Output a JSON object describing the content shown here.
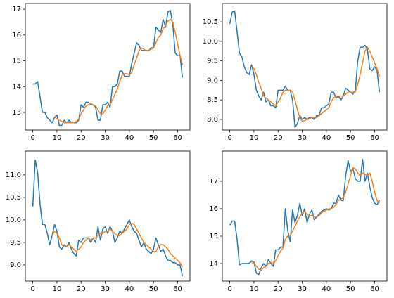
{
  "chart_data": [
    {
      "type": "line",
      "x": [
        0,
        1,
        2,
        3,
        4,
        5,
        6,
        7,
        8,
        9,
        10,
        11,
        12,
        13,
        14,
        15,
        16,
        17,
        18,
        19,
        20,
        21,
        22,
        23,
        24,
        25,
        26,
        27,
        28,
        29,
        30,
        31,
        32,
        33,
        34,
        35,
        36,
        37,
        38,
        39,
        40,
        41,
        42,
        43,
        44,
        45,
        46,
        47,
        48,
        49,
        50,
        51,
        52,
        53,
        54,
        55,
        56,
        57,
        58,
        59,
        60,
        61,
        62
      ],
      "series": [
        {
          "color": "#1f77b4",
          "values": [
            14.1,
            14.1,
            14.2,
            13.6,
            13.0,
            13.0,
            12.8,
            12.7,
            12.6,
            12.8,
            12.9,
            12.5,
            12.5,
            12.7,
            12.6,
            12.7,
            12.6,
            12.6,
            12.6,
            12.7,
            13.3,
            13.2,
            13.4,
            13.4,
            13.3,
            13.3,
            13.2,
            12.7,
            12.7,
            13.3,
            13.3,
            13.4,
            13.2,
            14.0,
            14.0,
            14.1,
            14.6,
            14.6,
            14.4,
            14.4,
            14.4,
            14.9,
            15.3,
            15.7,
            15.6,
            15.4,
            15.4,
            15.4,
            15.4,
            15.5,
            15.5,
            16.3,
            16.2,
            16.1,
            16.6,
            16.3,
            16.9,
            16.95,
            16.4,
            15.3,
            15.2,
            15.2,
            14.35
          ]
        },
        {
          "color": "#ff7f0e",
          "values": [
            null,
            null,
            null,
            null,
            null,
            null,
            null,
            null,
            null,
            12.85,
            12.75,
            12.7,
            12.65,
            12.6,
            12.6,
            12.6,
            12.6,
            12.6,
            12.65,
            12.75,
            12.95,
            13.1,
            13.25,
            13.3,
            13.35,
            13.3,
            13.25,
            13.1,
            12.95,
            12.95,
            13.1,
            13.25,
            13.3,
            13.5,
            13.7,
            13.9,
            14.2,
            14.45,
            14.5,
            14.5,
            14.45,
            14.55,
            14.85,
            15.1,
            15.4,
            15.5,
            15.45,
            15.4,
            15.4,
            15.45,
            15.5,
            15.7,
            15.9,
            16.0,
            16.25,
            16.35,
            16.55,
            16.6,
            16.5,
            16.1,
            15.65,
            15.2,
            14.85
          ]
        }
      ],
      "xlim": [
        -3.1,
        65.1
      ],
      "xticks": [
        0,
        10,
        20,
        30,
        40,
        50,
        60
      ],
      "ylim": [
        12.32,
        17.22
      ],
      "yticks": [
        13,
        14,
        15,
        16,
        17
      ]
    },
    {
      "type": "line",
      "x": [
        0,
        1,
        2,
        3,
        4,
        5,
        6,
        7,
        8,
        9,
        10,
        11,
        12,
        13,
        14,
        15,
        16,
        17,
        18,
        19,
        20,
        21,
        22,
        23,
        24,
        25,
        26,
        27,
        28,
        29,
        30,
        31,
        32,
        33,
        34,
        35,
        36,
        37,
        38,
        39,
        40,
        41,
        42,
        43,
        44,
        45,
        46,
        47,
        48,
        49,
        50,
        51,
        52,
        53,
        54,
        55,
        56,
        57,
        58,
        59,
        60,
        61,
        62
      ],
      "series": [
        {
          "color": "#1f77b4",
          "values": [
            10.45,
            10.75,
            10.78,
            10.25,
            9.7,
            9.6,
            9.35,
            9.2,
            9.15,
            9.4,
            9.15,
            8.75,
            8.6,
            8.5,
            8.7,
            8.45,
            8.5,
            8.35,
            8.35,
            8.3,
            8.75,
            8.75,
            8.75,
            8.85,
            8.75,
            8.75,
            8.5,
            7.8,
            7.9,
            8.1,
            8.0,
            8.05,
            8.0,
            8.05,
            8.05,
            8.0,
            8.1,
            8.1,
            8.3,
            8.3,
            8.35,
            8.4,
            8.7,
            8.7,
            8.55,
            8.6,
            8.5,
            8.6,
            8.8,
            8.75,
            8.7,
            8.65,
            8.75,
            9.5,
            9.85,
            9.85,
            9.9,
            9.8,
            9.3,
            9.25,
            9.35,
            9.25,
            8.7
          ]
        },
        {
          "color": "#ff7f0e",
          "values": [
            null,
            null,
            null,
            null,
            null,
            null,
            null,
            null,
            null,
            9.35,
            9.3,
            9.15,
            8.95,
            8.8,
            8.6,
            8.55,
            8.5,
            8.45,
            8.4,
            8.35,
            8.45,
            8.55,
            8.7,
            8.75,
            8.75,
            8.75,
            8.7,
            8.5,
            8.25,
            8.05,
            7.95,
            7.97,
            8.0,
            8.02,
            8.05,
            8.05,
            8.05,
            8.1,
            8.15,
            8.2,
            8.25,
            8.3,
            8.45,
            8.55,
            8.6,
            8.6,
            8.6,
            8.6,
            8.65,
            8.7,
            8.7,
            8.7,
            8.7,
            8.9,
            9.15,
            9.45,
            9.75,
            9.85,
            9.75,
            9.6,
            9.45,
            9.3,
            9.1
          ]
        }
      ],
      "xlim": [
        -3.1,
        65.1
      ],
      "xticks": [
        0,
        10,
        20,
        30,
        40,
        50,
        60
      ],
      "ylim": [
        7.73,
        10.97
      ],
      "yticks": [
        {
          "value": 8.0,
          "label": "8.0"
        },
        {
          "value": 8.5,
          "label": "8.5"
        },
        {
          "value": 9.0,
          "label": "9.0"
        },
        {
          "value": 9.5,
          "label": "9.5"
        },
        {
          "value": 10.0,
          "label": "10.0"
        },
        {
          "value": 10.5,
          "label": "10.5"
        }
      ]
    },
    {
      "type": "line",
      "x": [
        0,
        1,
        2,
        3,
        4,
        5,
        6,
        7,
        8,
        9,
        10,
        11,
        12,
        13,
        14,
        15,
        16,
        17,
        18,
        19,
        20,
        21,
        22,
        23,
        24,
        25,
        26,
        27,
        28,
        29,
        30,
        31,
        32,
        33,
        34,
        35,
        36,
        37,
        38,
        39,
        40,
        41,
        42,
        43,
        44,
        45,
        46,
        47,
        48,
        49,
        50,
        51,
        52,
        53,
        54,
        55,
        56,
        57,
        58,
        59,
        60,
        61,
        62
      ],
      "series": [
        {
          "color": "#1f77b4",
          "values": [
            10.3,
            11.33,
            11.05,
            10.35,
            9.9,
            9.9,
            9.7,
            9.45,
            9.65,
            9.9,
            9.75,
            9.4,
            9.35,
            9.45,
            9.4,
            9.5,
            9.35,
            9.25,
            9.2,
            9.55,
            9.5,
            9.6,
            9.6,
            9.6,
            9.5,
            9.6,
            9.5,
            9.85,
            9.55,
            9.8,
            9.85,
            9.7,
            9.85,
            9.75,
            9.5,
            9.6,
            9.75,
            9.7,
            9.8,
            9.9,
            10.0,
            9.85,
            9.75,
            9.7,
            9.55,
            9.4,
            9.5,
            9.35,
            9.3,
            9.25,
            9.35,
            9.6,
            9.45,
            9.3,
            9.35,
            9.2,
            9.1,
            9.1,
            9.05,
            9.05,
            9.0,
            9.0,
            8.75
          ]
        },
        {
          "color": "#ff7f0e",
          "values": [
            null,
            null,
            null,
            null,
            null,
            null,
            null,
            null,
            9.65,
            9.75,
            9.7,
            9.6,
            9.45,
            9.4,
            9.4,
            9.45,
            9.4,
            9.35,
            9.3,
            9.35,
            9.4,
            9.5,
            9.55,
            9.6,
            9.55,
            9.6,
            9.6,
            9.65,
            9.7,
            9.7,
            9.75,
            9.75,
            9.8,
            9.75,
            9.7,
            9.65,
            9.65,
            9.7,
            9.75,
            9.8,
            9.9,
            9.92,
            9.9,
            9.8,
            9.7,
            9.6,
            9.5,
            9.45,
            9.4,
            9.35,
            9.3,
            9.3,
            9.4,
            9.45,
            9.45,
            9.4,
            9.35,
            9.25,
            9.2,
            9.15,
            9.1,
            9.05,
            8.95
          ]
        }
      ],
      "xlim": [
        -3.1,
        65.1
      ],
      "xticks": [
        0,
        10,
        20,
        30,
        40,
        50,
        60
      ],
      "ylim": [
        8.64,
        11.53
      ],
      "yticks": [
        {
          "value": 9.0,
          "label": "9.0"
        },
        {
          "value": 9.5,
          "label": "9.5"
        },
        {
          "value": 10.0,
          "label": "10.0"
        },
        {
          "value": 10.5,
          "label": "10.5"
        },
        {
          "value": 11.0,
          "label": "11.0"
        }
      ]
    },
    {
      "type": "line",
      "x": [
        0,
        1,
        2,
        3,
        4,
        5,
        6,
        7,
        8,
        9,
        10,
        11,
        12,
        13,
        14,
        15,
        16,
        17,
        18,
        19,
        20,
        21,
        22,
        23,
        24,
        25,
        26,
        27,
        28,
        29,
        30,
        31,
        32,
        33,
        34,
        35,
        36,
        37,
        38,
        39,
        40,
        41,
        42,
        43,
        44,
        45,
        46,
        47,
        48,
        49,
        50,
        51,
        52,
        53,
        54,
        55,
        56,
        57,
        58,
        59,
        60,
        61,
        62
      ],
      "series": [
        {
          "color": "#1f77b4",
          "values": [
            15.4,
            15.55,
            15.55,
            14.9,
            13.95,
            14.0,
            14.0,
            14.0,
            14.0,
            14.1,
            14.05,
            13.65,
            13.6,
            13.85,
            14.0,
            13.9,
            14.15,
            14.0,
            13.9,
            14.5,
            14.5,
            14.6,
            14.6,
            16.0,
            15.2,
            14.8,
            15.95,
            15.5,
            15.75,
            16.2,
            15.75,
            16.0,
            15.5,
            15.8,
            15.95,
            15.6,
            15.7,
            15.8,
            15.9,
            15.95,
            16.0,
            15.95,
            16.0,
            16.2,
            16.2,
            16.5,
            16.3,
            16.3,
            17.2,
            17.75,
            17.35,
            17.45,
            17.1,
            17.0,
            17.0,
            17.8,
            17.0,
            17.3,
            16.8,
            16.4,
            16.2,
            16.15,
            16.3
          ]
        },
        {
          "color": "#ff7f0e",
          "values": [
            null,
            null,
            null,
            null,
            null,
            null,
            null,
            null,
            null,
            14.05,
            14.0,
            13.9,
            13.8,
            13.75,
            13.85,
            13.9,
            14.0,
            14.05,
            14.0,
            14.1,
            14.3,
            14.45,
            14.55,
            14.9,
            15.0,
            15.0,
            15.2,
            15.35,
            15.55,
            15.7,
            15.85,
            15.9,
            15.8,
            15.75,
            15.75,
            15.7,
            15.7,
            15.75,
            15.85,
            15.9,
            15.95,
            16.0,
            16.0,
            16.05,
            16.15,
            16.3,
            16.35,
            16.4,
            16.6,
            16.9,
            17.2,
            17.5,
            17.45,
            17.3,
            17.2,
            17.3,
            17.25,
            17.2,
            17.3,
            17.0,
            16.6,
            16.3,
            16.2
          ]
        }
      ],
      "xlim": [
        -3.1,
        65.1
      ],
      "xticks": [
        0,
        10,
        20,
        30,
        40,
        50,
        60
      ],
      "ylim": [
        13.36,
        18.1
      ],
      "yticks": [
        14,
        15,
        16,
        17
      ]
    }
  ]
}
